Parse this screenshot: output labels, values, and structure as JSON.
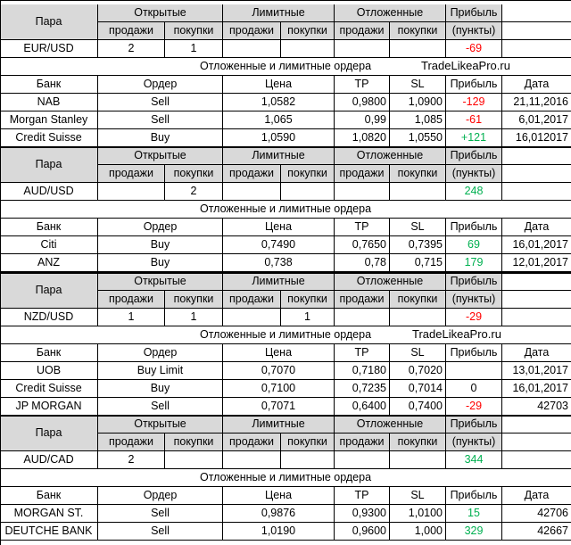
{
  "headers": {
    "pair": "Пара",
    "open": "Открытые",
    "limit": "Лимитные",
    "pending": "Отложенные",
    "profit": "Прибыль",
    "points": "(пункты)",
    "sell": "продажи",
    "buy": "покупки",
    "orders_title": "Отложенные и лимитные ордера",
    "bank": "Банк",
    "order": "Ордер",
    "price": "Цена",
    "tp": "TP",
    "sl": "SL",
    "profit_short": "Прибыль",
    "date": "Дата"
  },
  "watermark": "TradeLikeaPro.ru",
  "sections": [
    {
      "pair": "EUR/USD",
      "open_sell": "2",
      "open_buy": "1",
      "limit_sell": "",
      "limit_buy": "",
      "pending_sell": "",
      "pending_buy": "",
      "profit": "-69",
      "profit_color": "red",
      "orders": [
        {
          "bank": "NAB",
          "order": "Sell",
          "price": "1,0582",
          "tp": "0,9800",
          "sl": "1,0900",
          "profit": "-129",
          "profit_color": "red",
          "date": "21,11,2016"
        },
        {
          "bank": "Morgan Stanley",
          "order": "Sell",
          "price": "1,065",
          "tp": "0,99",
          "sl": "1,085",
          "profit": "-61",
          "profit_color": "red",
          "date": "6,01,2017"
        },
        {
          "bank": "Credit Suisse",
          "order": "Buy",
          "price": "1,0590",
          "tp": "1,0820",
          "sl": "1,0550",
          "profit": "+121",
          "profit_color": "green",
          "date": "16,012017"
        }
      ]
    },
    {
      "pair": "AUD/USD",
      "open_sell": "",
      "open_buy": "2",
      "limit_sell": "",
      "limit_buy": "",
      "pending_sell": "",
      "pending_buy": "",
      "profit": "248",
      "profit_color": "green",
      "orders": [
        {
          "bank": "Citi",
          "order": "Buy",
          "price": "0,7490",
          "tp": "0,7650",
          "sl": "0,7395",
          "profit": "69",
          "profit_color": "green",
          "date": "16,01,2017"
        },
        {
          "bank": "ANZ",
          "order": "Buy",
          "price": "0,738",
          "tp": "0,78",
          "sl": "0,715",
          "profit": "179",
          "profit_color": "green",
          "date": "12,01,2017"
        }
      ]
    },
    {
      "pair": "NZD/USD",
      "open_sell": "1",
      "open_buy": "1",
      "limit_sell": "",
      "limit_buy": "1",
      "pending_sell": "",
      "pending_buy": "",
      "profit": "-29",
      "profit_color": "red",
      "orders": [
        {
          "bank": "UOB",
          "order": "Buy Limit",
          "price": "0,7070",
          "tp": "0,7180",
          "sl": "0,7020",
          "profit": "",
          "profit_color": "black",
          "date": "13,01,2017"
        },
        {
          "bank": "Credit Suisse",
          "order": "Buy",
          "price": "0,7100",
          "tp": "0,7235",
          "sl": "0,7014",
          "profit": "0",
          "profit_color": "black",
          "date": "16,01,2017"
        },
        {
          "bank": "JP MORGAN",
          "order": "Sell",
          "price": "0,7071",
          "tp": "0,6400",
          "sl": "0,7400",
          "profit": "-29",
          "profit_color": "red",
          "date": "42703"
        }
      ]
    },
    {
      "pair": "AUD/CAD",
      "open_sell": "2",
      "open_buy": "",
      "limit_sell": "",
      "limit_buy": "",
      "pending_sell": "",
      "pending_buy": "",
      "profit": "344",
      "profit_color": "green",
      "orders": [
        {
          "bank": "MORGAN ST.",
          "order": "Sell",
          "price": "0,9876",
          "tp": "0,9300",
          "sl": "1,0100",
          "profit": "15",
          "profit_color": "green",
          "date": "42706"
        },
        {
          "bank": "DEUTCHE BANK",
          "order": "Sell",
          "price": "1,0190",
          "tp": "0,9600",
          "sl": "1,000",
          "profit": "329",
          "profit_color": "green",
          "date": "42667"
        }
      ]
    }
  ]
}
